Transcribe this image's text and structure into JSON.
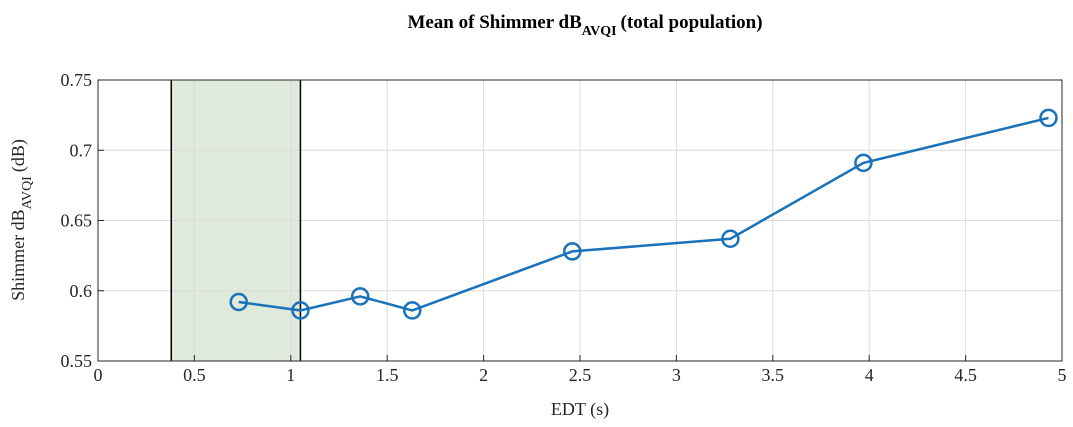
{
  "chart_data": {
    "type": "line",
    "title": {
      "text": "Mean of Shimmer dB",
      "subscript": "AVQI",
      "suffix": "(total population)"
    },
    "xlabel": "EDT (s)",
    "ylabel": {
      "text": "Shimmer dB",
      "subscript": "AVQI",
      "suffix": "(dB)"
    },
    "x": [
      0.73,
      1.05,
      1.36,
      1.63,
      2.46,
      3.28,
      3.97,
      4.93
    ],
    "series": [
      {
        "name": "Mean",
        "color": "#1a72bb",
        "values": [
          0.592,
          0.586,
          0.596,
          0.586,
          0.628,
          0.637,
          0.691,
          0.723
        ]
      }
    ],
    "xlim": [
      0,
      5
    ],
    "xticks": [
      0,
      0.5,
      1,
      1.5,
      2,
      2.5,
      3,
      3.5,
      4,
      4.5,
      5
    ],
    "ylim": [
      0.55,
      0.75
    ],
    "yticks": [
      0.55,
      0.6,
      0.65,
      0.7,
      0.75
    ],
    "grid": true,
    "shaded_region": {
      "xlim": [
        0.38,
        1.05
      ],
      "color": "#dfe9dc"
    }
  }
}
